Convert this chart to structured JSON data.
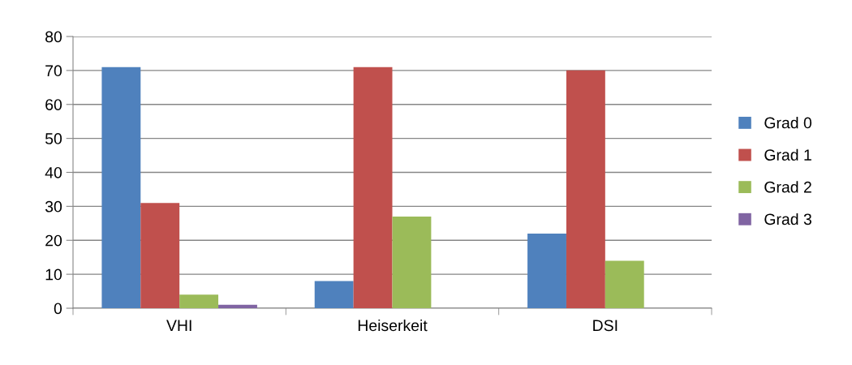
{
  "chart_data": {
    "type": "bar",
    "categories": [
      "VHI",
      "Heiserkeit",
      "DSI"
    ],
    "series": [
      {
        "name": "Grad 0",
        "color": "#4f81bd",
        "values": [
          71,
          8,
          22
        ]
      },
      {
        "name": "Grad 1",
        "color": "#c0504d",
        "values": [
          31,
          71,
          70
        ]
      },
      {
        "name": "Grad 2",
        "color": "#9bbb59",
        "values": [
          4,
          27,
          14
        ]
      },
      {
        "name": "Grad 3",
        "color": "#8064a2",
        "values": [
          1,
          0,
          0
        ]
      }
    ],
    "ylim": [
      0,
      80
    ],
    "yticks": [
      0,
      10,
      20,
      30,
      40,
      50,
      60,
      70,
      80
    ],
    "grid": "y",
    "legend": "right"
  }
}
